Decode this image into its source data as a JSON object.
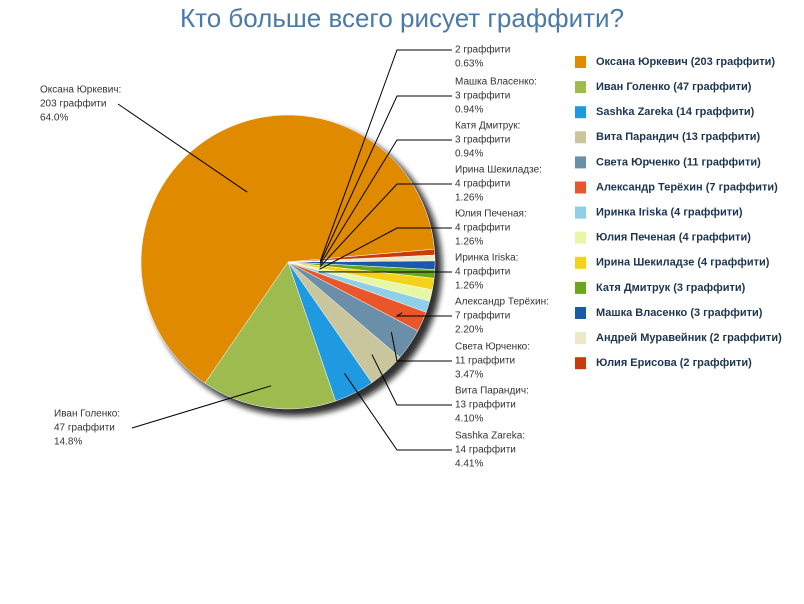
{
  "chart_data": {
    "type": "pie",
    "title": "Кто больше всего рисует граффити?",
    "values": [
      203,
      47,
      14,
      13,
      11,
      7,
      4,
      4,
      4,
      3,
      3,
      2,
      2
    ],
    "colors": [
      "#e08a00",
      "#9dbb4f",
      "#1f9ae0",
      "#c9c59c",
      "#6b8fa8",
      "#e8562a",
      "#8fd0e8",
      "#e8f7a6",
      "#f5d21a",
      "#6aa51a",
      "#1a5aa8",
      "#ece8c8",
      "#c83c0a"
    ],
    "legend_labels": [
      "Оксана Юркевич (203 граффити)",
      "Иван Голенко (47 граффити)",
      "Sashka Zareka (14 граффити)",
      "Вита Парандич (13 граффити)",
      "Света Юрченко (11 граффити)",
      "Александр Терёхин (7 граффити)",
      "Иринка Iriska (4 граффити)",
      "Юлия Печеная (4 граффити)",
      "Ирина Шекиладзе (4 граффити)",
      "Катя Дмитрук (3 граффити)",
      "Машка Власенко (3 граффити)",
      "Андрей Муравейник (2 граффити)",
      "Юлия Ерисова (2 граффити)"
    ],
    "label_names": [
      "Оксана Юркевич:",
      "Иван Голенко:",
      "Sashka Zareka:",
      "Вита Парандич:",
      "Света Юрченко:",
      "Александр Терёхин:",
      "Иринка Iriska:",
      "Юлия Печеная:",
      "Ирина Шекиладзе:",
      "Катя Дмитрук:",
      "Машка Власенко:",
      null,
      null
    ],
    "value_labels": [
      "203 граффити",
      "47 граффити",
      "14 граффити",
      "13 граффити",
      "11 граффити",
      "7 граффити",
      "4 граффити",
      "4 граффити",
      "4 граффити",
      "3 граффити",
      "3 граффити",
      "2 граффити",
      null
    ],
    "percent_labels": [
      "64.0%",
      "14.8%",
      "4.41%",
      "4.10%",
      "3.47%",
      "2.20%",
      "1.26%",
      "1.26%",
      "1.26%",
      "0.94%",
      "0.94%",
      "0.63%",
      null
    ]
  }
}
